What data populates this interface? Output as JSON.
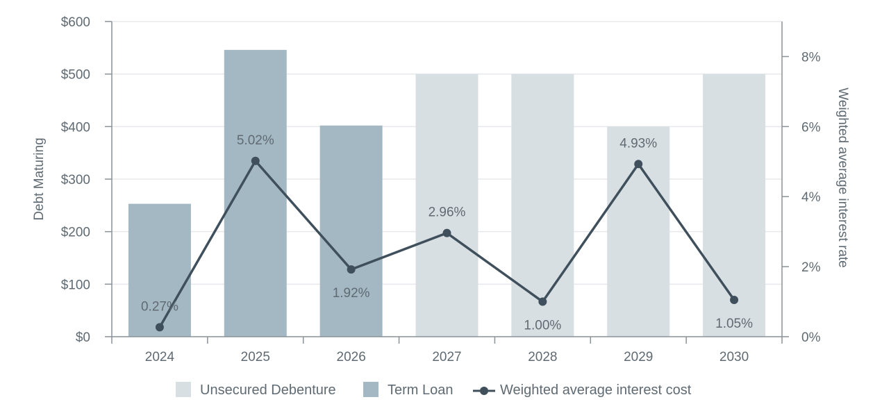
{
  "chart_data": {
    "type": "bar",
    "categories": [
      "2024",
      "2025",
      "2026",
      "2027",
      "2028",
      "2029",
      "2030"
    ],
    "series": [
      {
        "name": "Unsecured Debenture",
        "kind": "bar",
        "axis": "left",
        "color": "#d8dfe2",
        "values": [
          0,
          0,
          0,
          500,
          500,
          400,
          500
        ]
      },
      {
        "name": "Term Loan",
        "kind": "bar",
        "axis": "left",
        "color": "#a4b8c4",
        "values": [
          253,
          546,
          402,
          0,
          0,
          0,
          0
        ]
      },
      {
        "name": "Weighted average interest cost",
        "kind": "line",
        "axis": "right",
        "color": "#3f4f5b",
        "values": [
          0.27,
          5.02,
          1.92,
          2.96,
          1.0,
          4.93,
          1.05
        ],
        "labels": [
          "0.27%",
          "5.02%",
          "1.92%",
          "2.96%",
          "1.00%",
          "4.93%",
          "1.05%"
        ]
      }
    ],
    "y_left": {
      "label": "Debt Maturing",
      "ylim": [
        0,
        600
      ],
      "ticks": [
        0,
        100,
        200,
        300,
        400,
        500,
        600
      ],
      "tick_labels": [
        "$0",
        "$100",
        "$200",
        "$300",
        "$400",
        "$500",
        "$600"
      ]
    },
    "y_right": {
      "label": "Weighted average interest rate",
      "ylim": [
        0,
        9
      ],
      "ticks": [
        0,
        2,
        4,
        6,
        8
      ],
      "tick_labels": [
        "0%",
        "2%",
        "4%",
        "6%",
        "8%"
      ]
    },
    "grid": true,
    "legend_position": "bottom-center",
    "title": ""
  }
}
